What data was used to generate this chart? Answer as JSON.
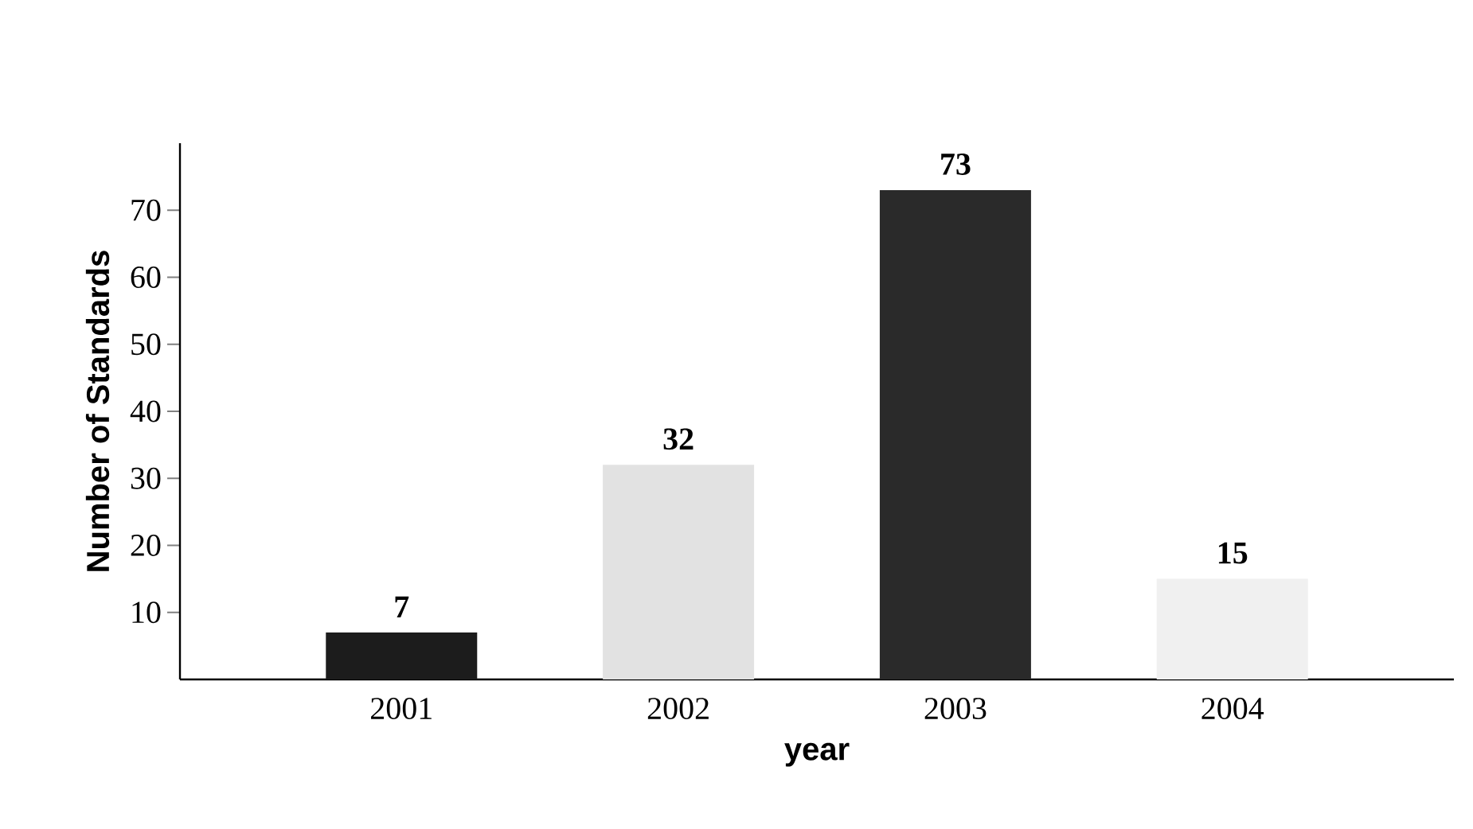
{
  "chart_data": {
    "type": "bar",
    "xlabel": "year",
    "ylabel": "Number of Standards",
    "categories": [
      "2001",
      "2002",
      "2003",
      "2004"
    ],
    "values": [
      7,
      32,
      73,
      15
    ],
    "colors": [
      "#1c1c1c",
      "#e2e2e2",
      "#2a2a2a",
      "#f0f0f0"
    ],
    "ylim": [
      0,
      80
    ],
    "yticks": [
      10,
      20,
      30,
      40,
      50,
      60,
      70
    ],
    "data_labels": true
  }
}
